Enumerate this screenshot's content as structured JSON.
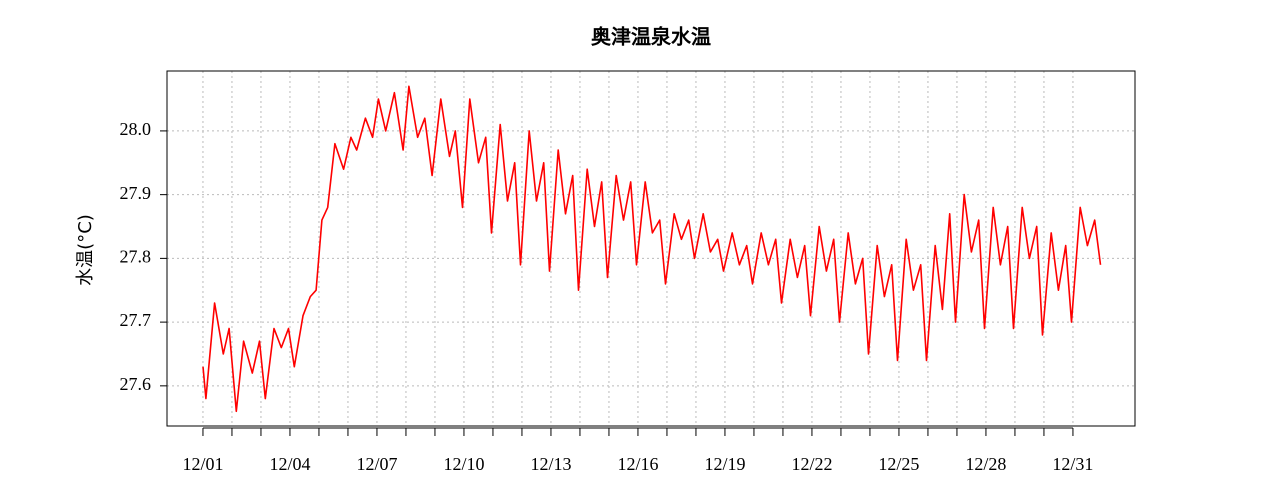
{
  "chart_data": {
    "type": "line",
    "title": "奥津温泉水温",
    "y_label": "水温(°C)",
    "grid": true,
    "xlim": [
      -0.24,
      33.14
    ],
    "ylim": [
      27.537,
      28.094
    ],
    "xticks": [
      {
        "value": 1,
        "label": "12/01"
      },
      {
        "value": 4,
        "label": "12/04"
      },
      {
        "value": 7,
        "label": "12/07"
      },
      {
        "value": 10,
        "label": "12/10"
      },
      {
        "value": 13,
        "label": "12/13"
      },
      {
        "value": 16,
        "label": "12/16"
      },
      {
        "value": 19,
        "label": "12/19"
      },
      {
        "value": 22,
        "label": "12/22"
      },
      {
        "value": 25,
        "label": "12/25"
      },
      {
        "value": 28,
        "label": "12/28"
      },
      {
        "value": 31,
        "label": "12/31"
      }
    ],
    "xminor_ticks": [
      2,
      3,
      5,
      6,
      8,
      9,
      11,
      12,
      14,
      15,
      17,
      18,
      20,
      21,
      23,
      24,
      26,
      27,
      29,
      30
    ],
    "yticks": [
      27.6,
      27.7,
      27.8,
      27.9,
      {
        "value": 28,
        "label": "28.0"
      }
    ],
    "series": [
      {
        "name": "水温",
        "color": "#ff0000",
        "x": [
          1.0,
          1.1,
          1.4,
          1.7,
          1.9,
          2.15,
          2.4,
          2.7,
          2.95,
          3.15,
          3.45,
          3.7,
          3.95,
          4.15,
          4.45,
          4.7,
          4.9,
          5.1,
          5.3,
          5.55,
          5.85,
          6.1,
          6.3,
          6.6,
          6.85,
          7.05,
          7.3,
          7.6,
          7.9,
          8.1,
          8.4,
          8.65,
          8.9,
          9.2,
          9.5,
          9.7,
          9.95,
          10.2,
          10.5,
          10.75,
          10.95,
          11.25,
          11.5,
          11.75,
          11.95,
          12.25,
          12.5,
          12.75,
          12.95,
          13.25,
          13.5,
          13.75,
          13.95,
          14.25,
          14.5,
          14.75,
          14.95,
          15.25,
          15.5,
          15.75,
          15.95,
          16.25,
          16.5,
          16.75,
          16.95,
          17.25,
          17.5,
          17.75,
          17.95,
          18.25,
          18.5,
          18.75,
          18.95,
          19.25,
          19.5,
          19.75,
          19.95,
          20.25,
          20.5,
          20.75,
          20.95,
          21.25,
          21.5,
          21.75,
          21.95,
          22.25,
          22.5,
          22.75,
          22.95,
          23.25,
          23.5,
          23.75,
          23.95,
          24.25,
          24.5,
          24.75,
          24.95,
          25.25,
          25.5,
          25.75,
          25.95,
          26.25,
          26.5,
          26.75,
          26.95,
          27.25,
          27.5,
          27.75,
          27.95,
          28.25,
          28.5,
          28.75,
          28.95,
          29.25,
          29.5,
          29.75,
          29.95,
          30.25,
          30.5,
          30.75,
          30.95,
          31.25,
          31.5,
          31.75,
          31.95
        ],
        "values": [
          27.63,
          27.58,
          27.73,
          27.65,
          27.69,
          27.56,
          27.67,
          27.62,
          27.67,
          27.58,
          27.69,
          27.66,
          27.69,
          27.63,
          27.71,
          27.74,
          27.75,
          27.86,
          27.88,
          27.98,
          27.94,
          27.99,
          27.97,
          28.02,
          27.99,
          28.05,
          28.0,
          28.06,
          27.97,
          28.07,
          27.99,
          28.02,
          27.93,
          28.05,
          27.96,
          28.0,
          27.88,
          28.05,
          27.95,
          27.99,
          27.84,
          28.01,
          27.89,
          27.95,
          27.79,
          28.0,
          27.89,
          27.95,
          27.78,
          27.97,
          27.87,
          27.93,
          27.75,
          27.94,
          27.85,
          27.92,
          27.77,
          27.93,
          27.86,
          27.92,
          27.79,
          27.92,
          27.84,
          27.86,
          27.76,
          27.87,
          27.83,
          27.86,
          27.8,
          27.87,
          27.81,
          27.83,
          27.78,
          27.84,
          27.79,
          27.82,
          27.76,
          27.84,
          27.79,
          27.83,
          27.73,
          27.83,
          27.77,
          27.82,
          27.71,
          27.85,
          27.78,
          27.83,
          27.7,
          27.84,
          27.76,
          27.8,
          27.65,
          27.82,
          27.74,
          27.79,
          27.64,
          27.83,
          27.75,
          27.79,
          27.64,
          27.82,
          27.72,
          27.87,
          27.7,
          27.9,
          27.81,
          27.86,
          27.69,
          27.88,
          27.79,
          27.85,
          27.69,
          27.88,
          27.8,
          27.85,
          27.68,
          27.84,
          27.75,
          27.82,
          27.7,
          27.88,
          27.82,
          27.86,
          27.79
        ]
      }
    ]
  }
}
